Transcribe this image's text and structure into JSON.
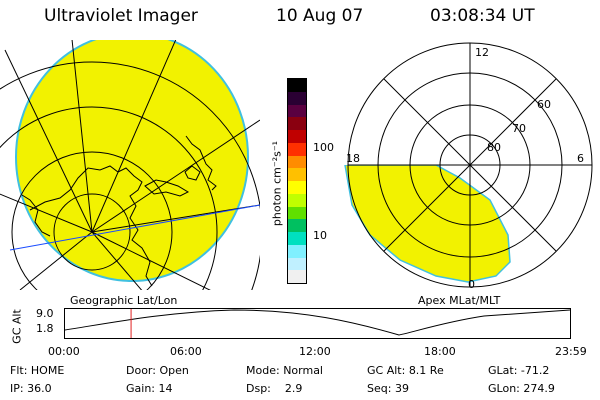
{
  "header": {
    "instrument": "Ultraviolet Imager",
    "date": "10 Aug 07",
    "time": "03:08:34 UT"
  },
  "left_panel_label": "Geographic Lat/Lon",
  "right_panel": {
    "label": "Apex MLat/MLT",
    "mlt_labels": {
      "top": "12",
      "left": "18",
      "right": "6",
      "bottom": "0"
    },
    "lat_labels": [
      "60",
      "70",
      "80"
    ]
  },
  "colorbar": {
    "unit": "photon cm⁻²s⁻¹",
    "ticks": [
      "100",
      "10"
    ],
    "colors": [
      "#000000",
      "#2a0033",
      "#5a0040",
      "#8a0010",
      "#c00000",
      "#ff3000",
      "#ff8c00",
      "#ffc000",
      "#ffff00",
      "#c0ff00",
      "#60e000",
      "#00c060",
      "#00e0c0",
      "#80f0ff",
      "#c0f0ff",
      "#f0f0f0"
    ]
  },
  "alt_plot": {
    "ylabel": "GC Alt",
    "yticks": [
      "9.0",
      "1.8"
    ],
    "xticks": [
      "00:00",
      "06:00",
      "12:00",
      "18:00",
      "23:59"
    ],
    "marker_time_hours": 3.14
  },
  "info": {
    "row1": [
      {
        "k": "Flt:",
        "v": "HOME"
      },
      {
        "k": "Door:",
        "v": "Open"
      },
      {
        "k": "Mode:",
        "v": "Normal"
      },
      {
        "k": "GC Alt:",
        "v": "8.1 Re"
      },
      {
        "k": "GLat:",
        "v": "-71.2"
      }
    ],
    "row2": [
      {
        "k": "IP:",
        "v": "36.0"
      },
      {
        "k": "Gain:",
        "v": "14"
      },
      {
        "k": "Dsp:",
        "v": "2.9"
      },
      {
        "k": "Seq:",
        "v": "39"
      },
      {
        "k": "GLon:",
        "v": "274.9"
      }
    ]
  }
}
